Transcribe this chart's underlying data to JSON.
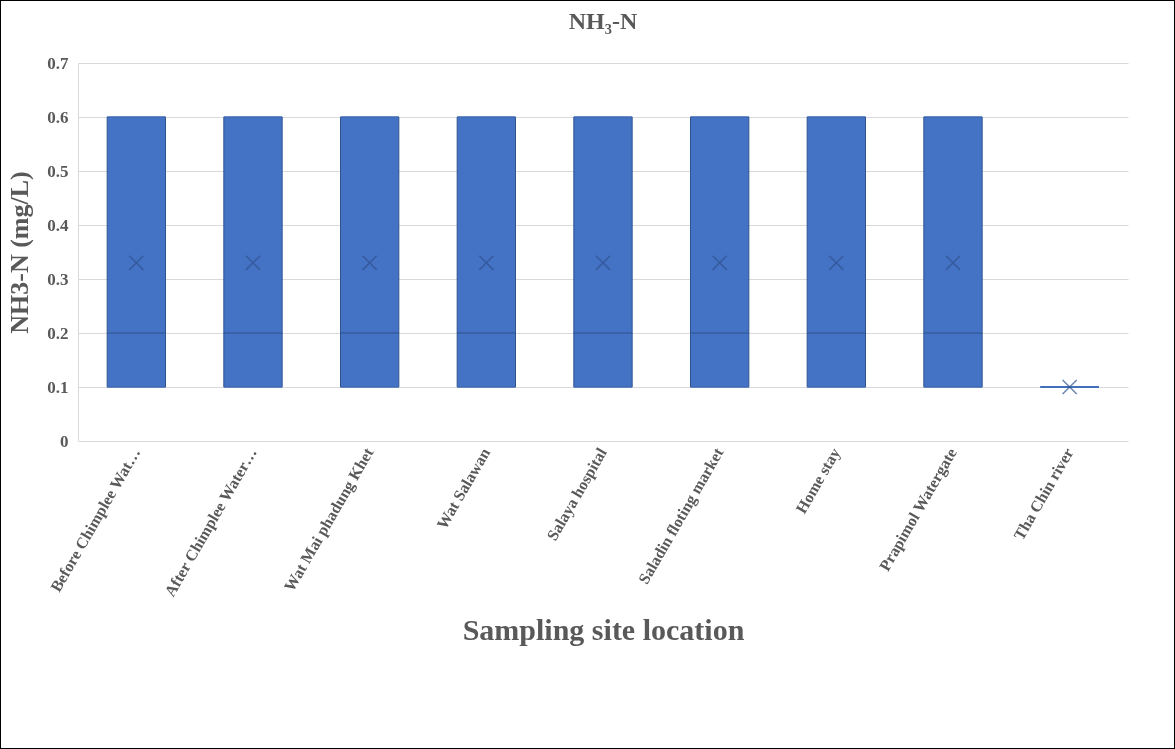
{
  "chart_data": {
    "type": "box",
    "title": "NH₃-N",
    "xlabel": "Sampling site location",
    "ylabel": "NH3-N (mg/L)",
    "categories": [
      "Before Chimplee Wat…",
      "After Chimplee Water…",
      "Wat Mai phadung Khet",
      "Wat Salawan",
      "Salaya hospital",
      "Saladin floting market",
      "Home stay",
      "Prapimol Watergate",
      "Tha Chin river"
    ],
    "series": [
      {
        "color": "#4472c4",
        "boxes": [
          {
            "low": 0.1,
            "q1": 0.1,
            "median": 0.2,
            "q3": 0.6,
            "high": 0.6,
            "mean": 0.33
          },
          {
            "low": 0.1,
            "q1": 0.1,
            "median": 0.2,
            "q3": 0.6,
            "high": 0.6,
            "mean": 0.33
          },
          {
            "low": 0.1,
            "q1": 0.1,
            "median": 0.2,
            "q3": 0.6,
            "high": 0.6,
            "mean": 0.33
          },
          {
            "low": 0.1,
            "q1": 0.1,
            "median": 0.2,
            "q3": 0.6,
            "high": 0.6,
            "mean": 0.33
          },
          {
            "low": 0.1,
            "q1": 0.1,
            "median": 0.2,
            "q3": 0.6,
            "high": 0.6,
            "mean": 0.33
          },
          {
            "low": 0.1,
            "q1": 0.1,
            "median": 0.2,
            "q3": 0.6,
            "high": 0.6,
            "mean": 0.33
          },
          {
            "low": 0.1,
            "q1": 0.1,
            "median": 0.2,
            "q3": 0.6,
            "high": 0.6,
            "mean": 0.33
          },
          {
            "low": 0.1,
            "q1": 0.1,
            "median": 0.2,
            "q3": 0.6,
            "high": 0.6,
            "mean": 0.33
          },
          {
            "low": 0.1,
            "q1": 0.1,
            "median": 0.1,
            "q3": 0.1,
            "high": 0.1,
            "mean": 0.1
          }
        ]
      }
    ],
    "ylim": [
      0,
      0.7
    ],
    "yticks": [
      0,
      0.1,
      0.2,
      0.3,
      0.4,
      0.5,
      0.6,
      0.7
    ],
    "grid": "y",
    "marker": "cross"
  }
}
